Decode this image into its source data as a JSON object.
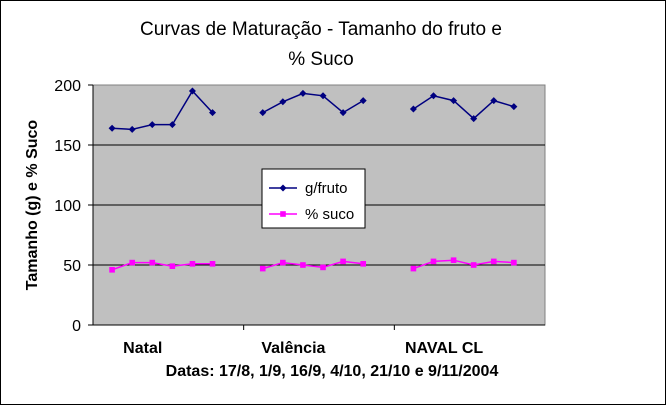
{
  "chart_data": {
    "type": "line",
    "title_line1": "Curvas de Maturação - Tamanho do fruto e",
    "title_line2": "% Suco",
    "ylabel": "Tamanho (g) e % Suco",
    "xlabel": "Datas: 17/8, 1/9, 16/9, 4/10, 21/10 e 9/11/2004",
    "ylim": [
      0,
      200
    ],
    "yticks": [
      0,
      50,
      100,
      150,
      200
    ],
    "grid": true,
    "legend_position": "center",
    "plot_background": "#c0c0c0",
    "categories": [
      "Natal",
      "Valência",
      "NAVAL CL"
    ],
    "points_per_category": 6,
    "series": [
      {
        "name": "g/fruto",
        "color": "#000080",
        "marker": "diamond",
        "groups": [
          [
            164,
            163,
            167,
            167,
            195,
            177
          ],
          [
            177,
            186,
            193,
            191,
            177,
            187
          ],
          [
            180,
            191,
            187,
            172,
            187,
            182
          ]
        ]
      },
      {
        "name": "% suco",
        "color": "#ff00ff",
        "marker": "square",
        "groups": [
          [
            46,
            52,
            52,
            49,
            51,
            51
          ],
          [
            47,
            52,
            50,
            48,
            53,
            51
          ],
          [
            47,
            53,
            54,
            50,
            53,
            52
          ]
        ]
      }
    ]
  }
}
